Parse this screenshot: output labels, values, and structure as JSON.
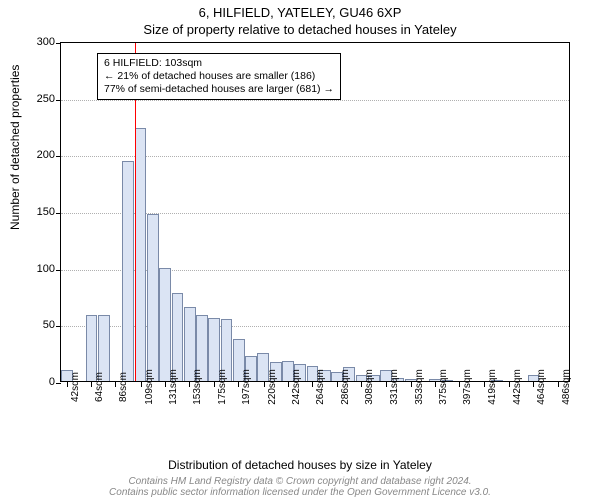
{
  "titles": {
    "main": "6, HILFIELD, YATELEY, GU46 6XP",
    "sub": "Size of property relative to detached houses in Yateley"
  },
  "axes": {
    "y_label": "Number of detached properties",
    "x_label": "Distribution of detached houses by size in Yateley",
    "ylim": [
      0,
      300
    ],
    "ytick_step": 50,
    "yticks": [
      0,
      50,
      100,
      150,
      200,
      250,
      300
    ]
  },
  "histogram": {
    "type": "histogram",
    "bar_fill": "#dbe4f4",
    "bar_stroke": "#7a8aa8",
    "background_color": "#ffffff",
    "grid_color": "#b0b0b0",
    "border_color": "#000000",
    "xticks": [
      "42sqm",
      "64sqm",
      "86sqm",
      "109sqm",
      "131sqm",
      "153sqm",
      "175sqm",
      "197sqm",
      "220sqm",
      "242sqm",
      "264sqm",
      "286sqm",
      "308sqm",
      "331sqm",
      "353sqm",
      "375sqm",
      "397sqm",
      "419sqm",
      "442sqm",
      "464sqm",
      "486sqm"
    ],
    "bin_width_sqm": 11.1,
    "x_range_sqm": [
      36,
      497
    ],
    "values": [
      10,
      0,
      58,
      58,
      0,
      194,
      223,
      147,
      100,
      78,
      65,
      58,
      56,
      55,
      37,
      22,
      25,
      17,
      18,
      15,
      13,
      10,
      8,
      12,
      5,
      5,
      10,
      3,
      2,
      0,
      2,
      1,
      0,
      0,
      0,
      1,
      0,
      0,
      5,
      0,
      0
    ]
  },
  "marker": {
    "value_sqm": 103,
    "color": "#ff0000"
  },
  "annotation": {
    "line1": "6 HILFIELD: 103sqm",
    "line2": "← 21% of detached houses are smaller (186)",
    "line3": "77% of semi-detached houses are larger (681) →"
  },
  "attribution": "Contains HM Land Registry data © Crown copyright and database right 2024.\nContains public sector information licensed under the Open Government Licence v3.0.",
  "fonts": {
    "title_fontsize": 13,
    "axis_label_fontsize": 12,
    "tick_fontsize": 11,
    "annotation_fontsize": 10.5,
    "attribution_fontsize": 10
  }
}
